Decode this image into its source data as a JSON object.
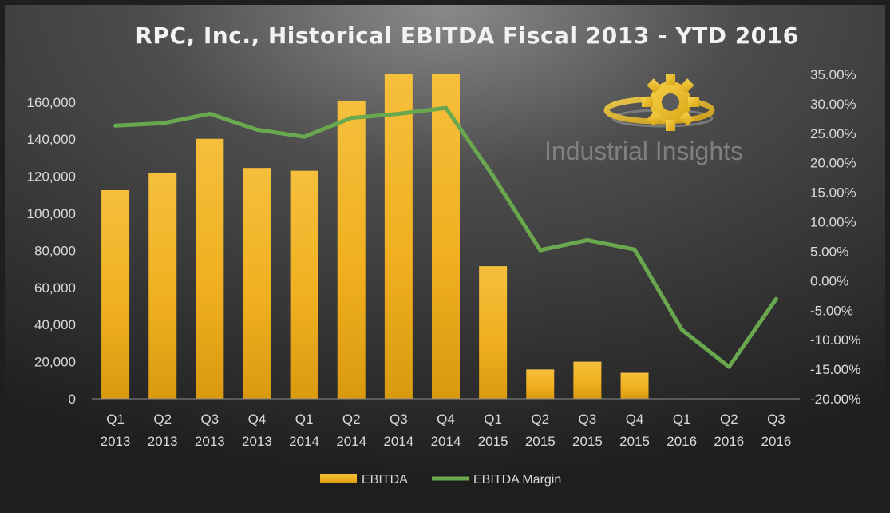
{
  "chart_data": {
    "type": "bar",
    "title": "RPC, Inc., Historical EBITDA Fiscal 2013 - YTD 2016",
    "categories": [
      [
        "Q1",
        "2013"
      ],
      [
        "Q2",
        "2013"
      ],
      [
        "Q3",
        "2013"
      ],
      [
        "Q4",
        "2013"
      ],
      [
        "Q1",
        "2014"
      ],
      [
        "Q2",
        "2014"
      ],
      [
        "Q3",
        "2014"
      ],
      [
        "Q4",
        "2014"
      ],
      [
        "Q1",
        "2015"
      ],
      [
        "Q2",
        "2015"
      ],
      [
        "Q3",
        "2015"
      ],
      [
        "Q4",
        "2015"
      ],
      [
        "Q1",
        "2016"
      ],
      [
        "Q2",
        "2016"
      ],
      [
        "Q3",
        "2016"
      ]
    ],
    "series": [
      {
        "name": "EBITDA",
        "type": "bar",
        "axis": "left",
        "values": [
          112500,
          122000,
          140200,
          124500,
          123000,
          160800,
          175000,
          175000,
          71500,
          15800,
          20000,
          14000,
          0,
          0,
          0
        ]
      },
      {
        "name": "EBITDA Margin",
        "type": "line",
        "axis": "right",
        "values": [
          26.3,
          26.7,
          28.3,
          25.6,
          24.4,
          27.6,
          28.3,
          29.3,
          17.8,
          5.2,
          6.9,
          5.3,
          -8.3,
          -14.6,
          -3.1
        ]
      }
    ],
    "y_left": {
      "min": 0,
      "max": 175000,
      "ticks": [
        "0",
        "20,000",
        "40,000",
        "60,000",
        "80,000",
        "100,000",
        "120,000",
        "140,000",
        "160,000"
      ],
      "tick_values": [
        0,
        20000,
        40000,
        60000,
        80000,
        100000,
        120000,
        140000,
        160000
      ]
    },
    "y_right": {
      "min": -20,
      "max": 35,
      "ticks": [
        "-20.00%",
        "-15.00%",
        "-10.00%",
        "-5.00%",
        "0.00%",
        "5.00%",
        "10.00%",
        "15.00%",
        "20.00%",
        "25.00%",
        "30.00%",
        "35.00%"
      ],
      "tick_values": [
        -20,
        -15,
        -10,
        -5,
        0,
        5,
        10,
        15,
        20,
        25,
        30,
        35
      ]
    },
    "grid": false,
    "legend": "bottom",
    "colors": {
      "bar": "#f0b020",
      "line": "#6aa84f"
    }
  },
  "watermark": {
    "text": "Industrial Insights",
    "icon": "gear-logo-icon"
  }
}
